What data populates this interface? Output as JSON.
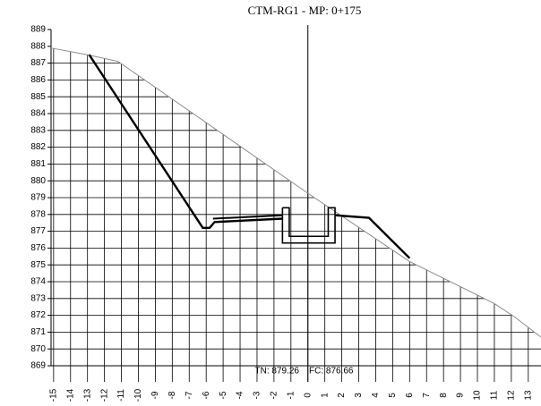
{
  "chart_data": {
    "type": "line",
    "title": "CTM-RG1 - MP: 0+175",
    "annotations": [
      "TN: 879.26",
      "FC: 876.66"
    ],
    "xlim": [
      -15.15,
      13.75
    ],
    "ylim": [
      869,
      889
    ],
    "xticks": [
      -15,
      -14,
      -13,
      -12,
      -11,
      -10,
      -9,
      -8,
      -7,
      -6,
      -5,
      -4,
      -3,
      -2,
      -1,
      0,
      1,
      2,
      3,
      4,
      5,
      6,
      7,
      8,
      9,
      10,
      11,
      12,
      13
    ],
    "yticks": [
      869,
      870,
      871,
      872,
      873,
      874,
      875,
      876,
      877,
      878,
      879,
      880,
      881,
      882,
      883,
      884,
      885,
      886,
      887,
      888,
      889
    ],
    "grid": true,
    "series": [
      {
        "color": "#8c8c8c",
        "x": [
          -15.15,
          -13,
          -11.2,
          0,
          6,
          11,
          12.2,
          13.75
        ],
        "values": [
          887.9,
          887.5,
          887.1,
          879.26,
          875.2,
          872.7,
          871.9,
          870.7
        ]
      },
      {
        "color": "#000000",
        "x": [
          -12.9,
          -6.2,
          -5.8,
          -5.5,
          -1.5
        ],
        "values": [
          887.5,
          877.2,
          877.2,
          877.55,
          877.75
        ]
      },
      {
        "color": "#000000",
        "x": [
          -5.6,
          -1.5
        ],
        "values": [
          877.75,
          877.95
        ]
      },
      {
        "color": "#000000",
        "x": [
          -1.5,
          -1.1,
          -1.1,
          1.2,
          1.2,
          1.6,
          1.6,
          -1.5,
          -1.5
        ],
        "values": [
          878.4,
          878.4,
          876.7,
          876.7,
          878.4,
          878.4,
          876.3,
          876.3,
          878.4
        ]
      },
      {
        "color": "#000000",
        "x": [
          1.6,
          3.6,
          6
        ],
        "values": [
          877.95,
          877.8,
          875.4
        ]
      }
    ]
  }
}
